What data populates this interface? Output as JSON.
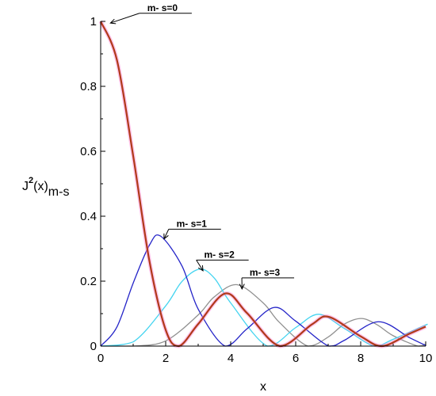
{
  "chart_data": {
    "type": "line",
    "xlabel": "x",
    "ylabel": {
      "base": "J",
      "sup": "2",
      "arg": "(x)",
      "sub": "m-s"
    },
    "xlim": [
      0,
      10
    ],
    "ylim": [
      0,
      1
    ],
    "x_ticks": [
      0,
      2,
      4,
      6,
      8,
      10
    ],
    "y_ticks": [
      0,
      0.2,
      0.4,
      0.6,
      0.8,
      1
    ],
    "x_tick_labels": [
      "0",
      "2",
      "4",
      "6",
      "8",
      "10"
    ],
    "y_tick_labels": [
      "0",
      "0.2",
      "0.4",
      "0.6",
      "0.8",
      "1"
    ],
    "grid": false,
    "series": [
      {
        "order": 0,
        "color": "#b03a1a",
        "x": [
          0,
          0.5,
          1,
          1.5,
          2,
          2.405,
          3,
          3.83,
          4.5,
          5.52,
          6.5,
          7.02,
          8,
          8.654,
          9.5,
          10
        ],
        "y": [
          1,
          0.881,
          0.586,
          0.262,
          0.05,
          0,
          0.068,
          0.162,
          0.102,
          0,
          0.067,
          0.09,
          0.03,
          0,
          0.038,
          0.06
        ]
      },
      {
        "order": 1,
        "color": "#2424c8",
        "x": [
          0,
          0.5,
          1,
          1.5,
          1.84,
          2.5,
          3,
          3.832,
          4.5,
          5.33,
          6,
          7.016,
          7.5,
          8.54,
          9.5,
          10
        ],
        "y": [
          0,
          0.059,
          0.194,
          0.311,
          0.339,
          0.247,
          0.114,
          0,
          0.053,
          0.119,
          0.077,
          0,
          0.018,
          0.075,
          0.026,
          0.002
        ]
      },
      {
        "order": 2,
        "color": "#44d4f0",
        "x": [
          0,
          1,
          2,
          2.5,
          3.05,
          3.5,
          4,
          5.136,
          6,
          6.71,
          7.5,
          8.417,
          9,
          9.97,
          10
        ],
        "y": [
          0,
          0.013,
          0.124,
          0.199,
          0.237,
          0.209,
          0.133,
          0,
          0.057,
          0.098,
          0.054,
          0,
          0.021,
          0.064,
          0.064
        ]
      },
      {
        "order": 3,
        "color": "#909090",
        "x": [
          0,
          1,
          2,
          3,
          3.5,
          4.2,
          5,
          5.5,
          6.38,
          7,
          7.5,
          8.02,
          8.5,
          9,
          9.76,
          10
        ],
        "y": [
          0,
          0,
          0.016,
          0.096,
          0.152,
          0.189,
          0.133,
          0.073,
          0,
          0.028,
          0.068,
          0.085,
          0.066,
          0.032,
          0,
          0.006
        ]
      }
    ],
    "annotations": [
      {
        "text": "m- s=0",
        "point": [
          0.3,
          0.995
        ],
        "label_at": [
          1.9,
          1.025
        ]
      },
      {
        "text": "m- s=1",
        "point": [
          1.95,
          0.33
        ],
        "label_at": [
          2.8,
          0.36
        ]
      },
      {
        "text": "m- s=2",
        "point": [
          3.15,
          0.232
        ],
        "label_at": [
          3.65,
          0.265
        ]
      },
      {
        "text": "m- s=3",
        "point": [
          4.35,
          0.176
        ],
        "label_at": [
          5.05,
          0.21
        ]
      }
    ]
  }
}
